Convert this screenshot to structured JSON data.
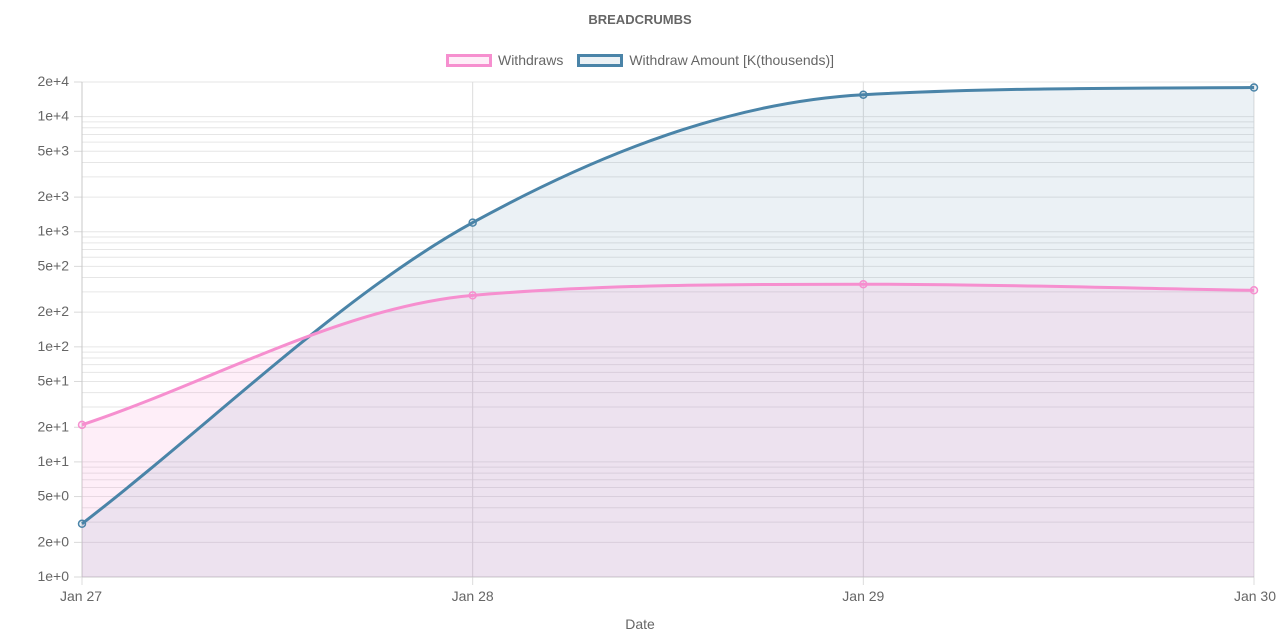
{
  "chart_data": {
    "type": "line",
    "title": "BREADCRUMBS",
    "xlabel": "Date",
    "ylabel": "",
    "yscale": "log",
    "ylim": [
      1,
      20000
    ],
    "y_ticks": [
      {
        "value": 1,
        "label": "1e+0"
      },
      {
        "value": 2,
        "label": "2e+0"
      },
      {
        "value": 5,
        "label": "5e+0"
      },
      {
        "value": 10,
        "label": "1e+1"
      },
      {
        "value": 20,
        "label": "2e+1"
      },
      {
        "value": 50,
        "label": "5e+1"
      },
      {
        "value": 100,
        "label": "1e+2"
      },
      {
        "value": 200,
        "label": "2e+2"
      },
      {
        "value": 500,
        "label": "5e+2"
      },
      {
        "value": 1000,
        "label": "1e+3"
      },
      {
        "value": 2000,
        "label": "2e+3"
      },
      {
        "value": 5000,
        "label": "5e+3"
      },
      {
        "value": 10000,
        "label": "1e+4"
      },
      {
        "value": 20000,
        "label": "2e+4"
      }
    ],
    "categories": [
      "Jan 27",
      "Jan 28",
      "Jan 29",
      "Jan 30"
    ],
    "legend_position": "top",
    "grid": true,
    "series": [
      {
        "name": "Withdraws",
        "values": [
          21,
          280,
          350,
          310
        ],
        "color": "#f68fcf",
        "fill": "rgba(246, 143, 207, 0.15)"
      },
      {
        "name": "Withdraw Amount [K(thousends)]",
        "values": [
          2.9,
          1200,
          15500,
          17900
        ],
        "color": "#4a84a8",
        "fill": "rgba(74, 132, 168, 0.11)"
      }
    ]
  }
}
